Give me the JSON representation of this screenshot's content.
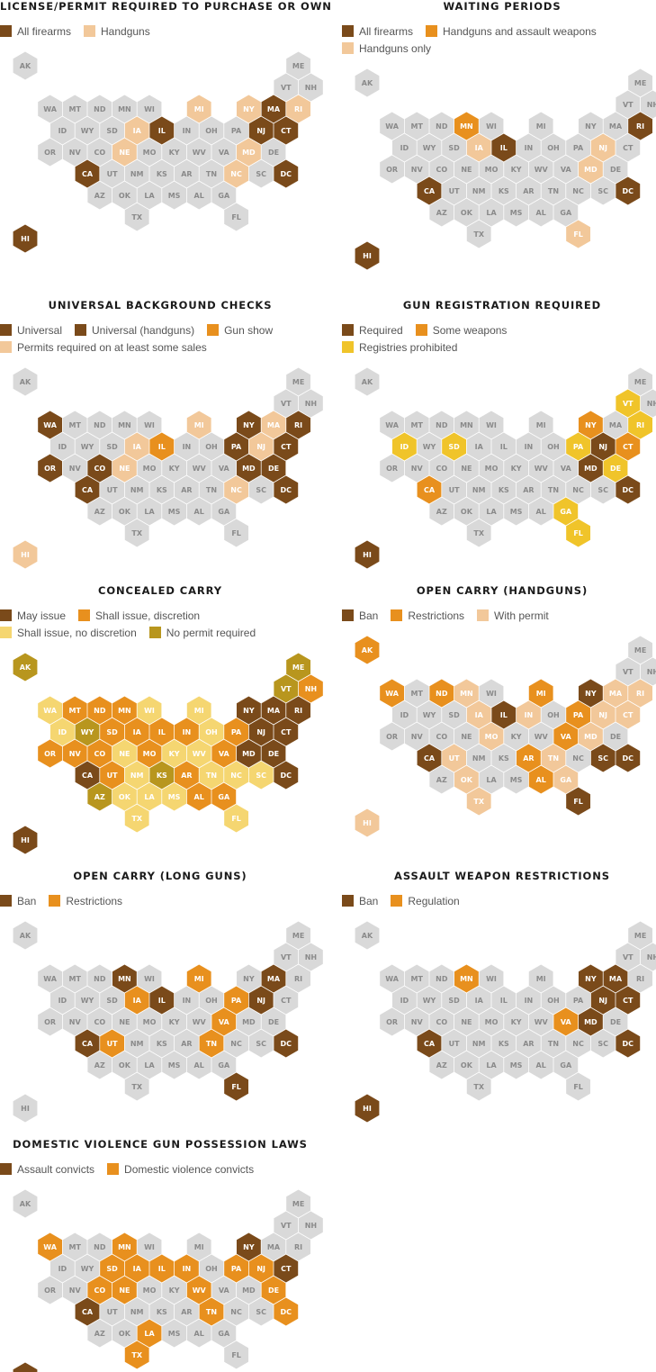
{
  "colors": {
    "none": "#d9d9d9",
    "dark": "#7a4a1a",
    "orange": "#e8901e",
    "light": "#f2c89a",
    "yellow": "#f0c42a",
    "paleyellow": "#f5d671",
    "olive": "#b8961e",
    "label_dark": "#ffffff",
    "label_none": "#8a8a8a"
  },
  "states": [
    [
      "AK",
      0,
      0
    ],
    [
      "ME",
      11,
      0
    ],
    [
      "VT",
      10,
      1
    ],
    [
      "NH",
      11,
      1
    ],
    [
      "WA",
      1,
      2
    ],
    [
      "MT",
      2,
      2
    ],
    [
      "ND",
      3,
      2
    ],
    [
      "MN",
      4,
      2
    ],
    [
      "WI",
      5,
      2
    ],
    [
      "MI",
      7,
      2
    ],
    [
      "NY",
      9,
      2
    ],
    [
      "MA",
      10,
      2
    ],
    [
      "RI",
      11,
      2
    ],
    [
      "ID",
      1,
      3
    ],
    [
      "WY",
      2,
      3
    ],
    [
      "SD",
      3,
      3
    ],
    [
      "IA",
      4,
      3
    ],
    [
      "IL",
      5,
      3
    ],
    [
      "IN",
      6,
      3
    ],
    [
      "OH",
      7,
      3
    ],
    [
      "PA",
      8,
      3
    ],
    [
      "NJ",
      9,
      3
    ],
    [
      "CT",
      10,
      3
    ],
    [
      "OR",
      1,
      4
    ],
    [
      "NV",
      2,
      4
    ],
    [
      "CO",
      3,
      4
    ],
    [
      "NE",
      4,
      4
    ],
    [
      "MO",
      5,
      4
    ],
    [
      "KY",
      6,
      4
    ],
    [
      "WV",
      7,
      4
    ],
    [
      "VA",
      8,
      4
    ],
    [
      "MD",
      9,
      4
    ],
    [
      "DE",
      10,
      4
    ],
    [
      "CA",
      2,
      5
    ],
    [
      "UT",
      3,
      5
    ],
    [
      "NM",
      4,
      5
    ],
    [
      "KS",
      5,
      5
    ],
    [
      "AR",
      6,
      5
    ],
    [
      "TN",
      7,
      5
    ],
    [
      "NC",
      8,
      5
    ],
    [
      "SC",
      9,
      5
    ],
    [
      "DC",
      10,
      5
    ],
    [
      "AZ",
      3,
      6
    ],
    [
      "OK",
      4,
      6
    ],
    [
      "LA",
      5,
      6
    ],
    [
      "MS",
      6,
      6
    ],
    [
      "AL",
      7,
      6
    ],
    [
      "GA",
      8,
      6
    ],
    [
      "TX",
      4,
      7
    ],
    [
      "FL",
      8,
      7
    ],
    [
      "HI",
      0,
      8
    ]
  ],
  "maps": [
    {
      "title": "LICENSE/PERMIT REQUIRED TO PURCHASE OR OWN",
      "legend": [
        [
          {
            "label": "All firearms",
            "color": "dark"
          },
          {
            "label": "Handguns",
            "color": "light"
          }
        ]
      ],
      "values": {
        "CA": "dark",
        "DC": "dark",
        "NJ": "dark",
        "MA": "dark",
        "CT": "dark",
        "IL": "dark",
        "HI": "dark",
        "MI": "light",
        "NY": "light",
        "RI": "light",
        "IA": "light",
        "NE": "light",
        "NC": "light",
        "MD": "light"
      }
    },
    {
      "title": "WAITING PERIODS",
      "legend": [
        [
          {
            "label": "All firearms",
            "color": "dark"
          },
          {
            "label": "Handguns and assault weapons",
            "color": "orange"
          }
        ],
        [
          {
            "label": "Handguns only",
            "color": "light"
          }
        ]
      ],
      "values": {
        "RI": "dark",
        "IL": "dark",
        "CA": "dark",
        "DC": "dark",
        "HI": "dark",
        "MN": "orange",
        "IA": "light",
        "NJ": "light",
        "MD": "light",
        "FL": "light"
      }
    },
    {
      "title": "UNIVERSAL BACKGROUND CHECKS",
      "legend": [
        [
          {
            "label": "Universal",
            "color": "dark"
          },
          {
            "label": "Universal (handguns)",
            "color": "dark"
          },
          {
            "label": "Gun show",
            "color": "orange"
          }
        ],
        [
          {
            "label": "Permits required on at least some sales",
            "color": "light"
          }
        ]
      ],
      "values": {
        "WA": "dark",
        "NY": "dark",
        "RI": "dark",
        "PA": "dark",
        "CT": "dark",
        "OR": "dark",
        "CO": "dark",
        "MD": "dark",
        "DE": "dark",
        "CA": "dark",
        "DC": "dark",
        "IL": "orange",
        "MI": "light",
        "MA": "light",
        "IA": "light",
        "NJ": "light",
        "NE": "light",
        "NC": "light",
        "HI": "light"
      }
    },
    {
      "title": "GUN REGISTRATION REQUIRED",
      "legend": [
        [
          {
            "label": "Required",
            "color": "dark"
          },
          {
            "label": "Some weapons",
            "color": "orange"
          }
        ],
        [
          {
            "label": "Registries prohibited",
            "color": "yellow"
          }
        ]
      ],
      "values": {
        "NJ": "dark",
        "MD": "dark",
        "DC": "dark",
        "HI": "dark",
        "NY": "orange",
        "CT": "orange",
        "CA": "orange",
        "VT": "yellow",
        "RI": "yellow",
        "ID": "yellow",
        "SD": "yellow",
        "PA": "yellow",
        "DE": "yellow",
        "GA": "yellow",
        "FL": "yellow"
      }
    },
    {
      "title": "CONCEALED CARRY",
      "legend": [
        [
          {
            "label": "May issue",
            "color": "dark"
          },
          {
            "label": "Shall issue, discretion",
            "color": "orange"
          }
        ],
        [
          {
            "label": "Shall issue, no discretion",
            "color": "paleyellow"
          },
          {
            "label": "No permit required",
            "color": "olive"
          }
        ]
      ],
      "values": {
        "NY": "dark",
        "MA": "dark",
        "RI": "dark",
        "NJ": "dark",
        "CT": "dark",
        "MD": "dark",
        "DE": "dark",
        "CA": "dark",
        "DC": "dark",
        "HI": "dark",
        "NH": "orange",
        "MT": "orange",
        "ND": "orange",
        "MN": "orange",
        "SD": "orange",
        "IA": "orange",
        "IL": "orange",
        "IN": "orange",
        "PA": "orange",
        "OR": "orange",
        "NV": "orange",
        "CO": "orange",
        "MO": "orange",
        "VA": "orange",
        "UT": "orange",
        "AR": "orange",
        "AL": "orange",
        "GA": "orange",
        "WA": "paleyellow",
        "WI": "paleyellow",
        "MI": "paleyellow",
        "ID": "paleyellow",
        "OH": "paleyellow",
        "NE": "paleyellow",
        "KY": "paleyellow",
        "WV": "paleyellow",
        "NM": "paleyellow",
        "TN": "paleyellow",
        "NC": "paleyellow",
        "SC": "paleyellow",
        "OK": "paleyellow",
        "LA": "paleyellow",
        "MS": "paleyellow",
        "TX": "paleyellow",
        "FL": "paleyellow",
        "AK": "olive",
        "ME": "olive",
        "VT": "olive",
        "WY": "olive",
        "KS": "olive",
        "AZ": "olive"
      }
    },
    {
      "title": "OPEN CARRY (HANDGUNS)",
      "legend": [
        [
          {
            "label": "Ban",
            "color": "dark"
          },
          {
            "label": "Restrictions",
            "color": "orange"
          },
          {
            "label": "With permit",
            "color": "light"
          }
        ]
      ],
      "values": {
        "NY": "dark",
        "IL": "dark",
        "CA": "dark",
        "SC": "dark",
        "DC": "dark",
        "FL": "dark",
        "AK": "orange",
        "WA": "orange",
        "ND": "orange",
        "MI": "orange",
        "PA": "orange",
        "VA": "orange",
        "AR": "orange",
        "AL": "orange",
        "MN": "light",
        "MA": "light",
        "RI": "light",
        "IA": "light",
        "IN": "light",
        "NJ": "light",
        "CT": "light",
        "MO": "light",
        "MD": "light",
        "UT": "light",
        "TN": "light",
        "OK": "light",
        "GA": "light",
        "TX": "light",
        "HI": "light"
      }
    },
    {
      "title": "OPEN CARRY (LONG GUNS)",
      "legend": [
        [
          {
            "label": "Ban",
            "color": "dark"
          },
          {
            "label": "Restrictions",
            "color": "orange"
          }
        ]
      ],
      "values": {
        "MN": "dark",
        "MA": "dark",
        "IL": "dark",
        "NJ": "dark",
        "CA": "dark",
        "DC": "dark",
        "FL": "dark",
        "MI": "orange",
        "IA": "orange",
        "PA": "orange",
        "VA": "orange",
        "UT": "orange",
        "TN": "orange"
      }
    },
    {
      "title": "ASSAULT WEAPON RESTRICTIONS",
      "legend": [
        [
          {
            "label": "Ban",
            "color": "dark"
          },
          {
            "label": "Regulation",
            "color": "orange"
          }
        ]
      ],
      "values": {
        "NY": "dark",
        "MA": "dark",
        "NJ": "dark",
        "CT": "dark",
        "MD": "dark",
        "CA": "dark",
        "DC": "dark",
        "HI": "dark",
        "MN": "orange",
        "VA": "orange"
      }
    },
    {
      "title": "DOMESTIC VIOLENCE GUN POSSESSION LAWS",
      "legend": [
        [
          {
            "label": "Assault convicts",
            "color": "dark"
          },
          {
            "label": "Domestic violence convicts",
            "color": "orange"
          }
        ]
      ],
      "values": {
        "NY": "dark",
        "CT": "dark",
        "CA": "dark",
        "HI": "dark",
        "WA": "orange",
        "MN": "orange",
        "SD": "orange",
        "IA": "orange",
        "IL": "orange",
        "IN": "orange",
        "PA": "orange",
        "NJ": "orange",
        "CO": "orange",
        "NE": "orange",
        "WV": "orange",
        "DE": "orange",
        "TN": "orange",
        "DC": "orange",
        "LA": "orange",
        "TX": "orange"
      }
    }
  ]
}
